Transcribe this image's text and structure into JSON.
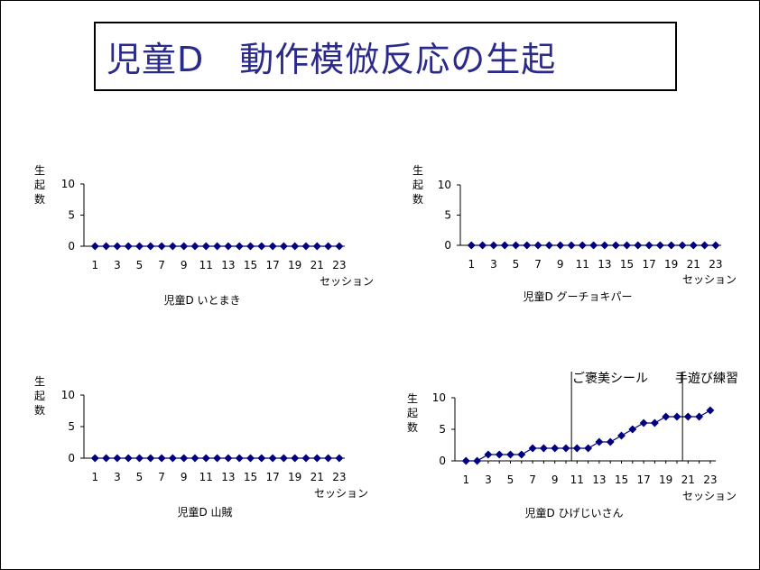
{
  "title": "児童D　動作模倣反応の生起",
  "chart_data": [
    {
      "type": "line",
      "caption": "児童D いとまき",
      "ylabel": "生起数",
      "xlabel": "セッション",
      "ylim": [
        0,
        10
      ],
      "yticks": [
        "0",
        "5",
        "10"
      ],
      "xticks": [
        "1",
        "3",
        "5",
        "7",
        "9",
        "11",
        "13",
        "15",
        "17",
        "19",
        "21",
        "23"
      ],
      "x": [
        1,
        2,
        3,
        4,
        5,
        6,
        7,
        8,
        9,
        10,
        11,
        12,
        13,
        14,
        15,
        16,
        17,
        18,
        19,
        20,
        21,
        22,
        23
      ],
      "values": [
        0,
        0,
        0,
        0,
        0,
        0,
        0,
        0,
        0,
        0,
        0,
        0,
        0,
        0,
        0,
        0,
        0,
        0,
        0,
        0,
        0,
        0,
        0
      ],
      "annotations": []
    },
    {
      "type": "line",
      "caption": "児童D グーチョキパー",
      "ylabel": "生起数",
      "xlabel": "セッション",
      "ylim": [
        0,
        10
      ],
      "yticks": [
        "0",
        "5",
        "10"
      ],
      "xticks": [
        "1",
        "3",
        "5",
        "7",
        "9",
        "11",
        "13",
        "15",
        "17",
        "19",
        "21",
        "23"
      ],
      "x": [
        1,
        2,
        3,
        4,
        5,
        6,
        7,
        8,
        9,
        10,
        11,
        12,
        13,
        14,
        15,
        16,
        17,
        18,
        19,
        20,
        21,
        22,
        23
      ],
      "values": [
        0,
        0,
        0,
        0,
        0,
        0,
        0,
        0,
        0,
        0,
        0,
        0,
        0,
        0,
        0,
        0,
        0,
        0,
        0,
        0,
        0,
        0,
        0
      ],
      "annotations": []
    },
    {
      "type": "line",
      "caption": "児童D 山賊",
      "ylabel": "生起数",
      "xlabel": "セッション",
      "ylim": [
        0,
        10
      ],
      "yticks": [
        "0",
        "5",
        "10"
      ],
      "xticks": [
        "1",
        "3",
        "5",
        "7",
        "9",
        "11",
        "13",
        "15",
        "17",
        "19",
        "21",
        "23"
      ],
      "x": [
        1,
        2,
        3,
        4,
        5,
        6,
        7,
        8,
        9,
        10,
        11,
        12,
        13,
        14,
        15,
        16,
        17,
        18,
        19,
        20,
        21,
        22,
        23
      ],
      "values": [
        0,
        0,
        0,
        0,
        0,
        0,
        0,
        0,
        0,
        0,
        0,
        0,
        0,
        0,
        0,
        0,
        0,
        0,
        0,
        0,
        0,
        0,
        0
      ],
      "annotations": []
    },
    {
      "type": "line",
      "caption": "児童D ひげじいさん",
      "ylabel": "生起数",
      "xlabel": "セッション",
      "ylim": [
        0,
        10
      ],
      "yticks": [
        "0",
        "5",
        "10"
      ],
      "xticks": [
        "1",
        "3",
        "5",
        "7",
        "9",
        "11",
        "13",
        "15",
        "17",
        "19",
        "21",
        "23"
      ],
      "x": [
        1,
        2,
        3,
        4,
        5,
        6,
        7,
        8,
        9,
        10,
        11,
        12,
        13,
        14,
        15,
        16,
        17,
        18,
        19,
        20,
        21,
        22,
        23
      ],
      "values": [
        0,
        0,
        1,
        1,
        1,
        1,
        2,
        2,
        2,
        2,
        2,
        2,
        3,
        3,
        4,
        5,
        6,
        6,
        7,
        7,
        7,
        7,
        8
      ],
      "annotations": [
        {
          "text": "ご褒美シール",
          "at_x": 10.5
        },
        {
          "text": "手遊び練習",
          "at_x": 20.5
        }
      ]
    }
  ],
  "colors": {
    "series": "#000080",
    "title": "#2a2a8a"
  }
}
